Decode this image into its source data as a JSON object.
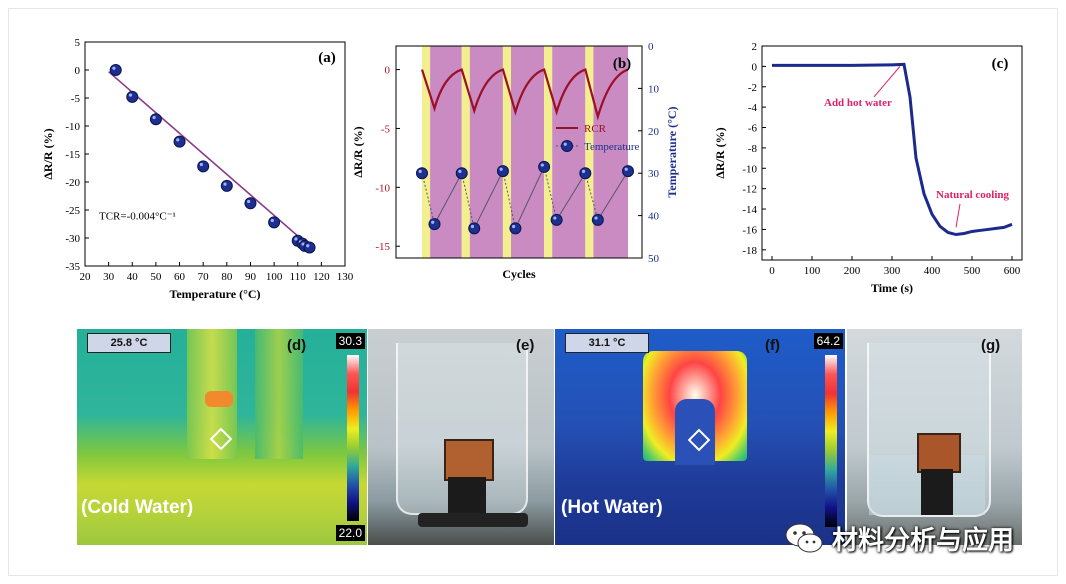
{
  "chart_data": [
    {
      "panel": "(a)",
      "type": "scatter",
      "xlabel": "Temperature (°C)",
      "ylabel": "ΔR/R (%)",
      "xlim": [
        20,
        130
      ],
      "ylim": [
        -35,
        5
      ],
      "xticks": [
        20,
        30,
        40,
        50,
        60,
        70,
        80,
        90,
        100,
        110,
        120,
        130
      ],
      "yticks": [
        5,
        0,
        -5,
        -10,
        -15,
        -20,
        -25,
        -30,
        -35
      ],
      "x": [
        33,
        40,
        50,
        60,
        70,
        80,
        90,
        100,
        110,
        112,
        113,
        115
      ],
      "y": [
        0,
        -4.8,
        -8.8,
        -12.8,
        -17.2,
        -20.7,
        -23.8,
        -27.2,
        -30.5,
        -31.0,
        -31.4,
        -31.7
      ],
      "fit_line": {
        "x": [
          30,
          117
        ],
        "y": [
          -0.3,
          -32.2
        ]
      },
      "annotation": "TCR=-0.004°C⁻¹"
    },
    {
      "panel": "(b)",
      "type": "line",
      "xlabel": "Cycles",
      "ylabel": "ΔR/R (%)",
      "ylabel_right": "Temperature (°C)",
      "ylim": [
        -16,
        2
      ],
      "yticks": [
        0,
        -5,
        -10,
        -15
      ],
      "ylim_right": [
        0,
        50
      ],
      "yticks_right": [
        0,
        10,
        20,
        30,
        40,
        50
      ],
      "legend": [
        "RCR",
        "Temperature"
      ],
      "series": [
        {
          "name": "RCR",
          "x": [
            0,
            0.85,
            2.7,
            3.55,
            5.5,
            6.35,
            8.3,
            9.15,
            11.1,
            11.95,
            14.0
          ],
          "values": [
            0,
            -3.3,
            0,
            -3.5,
            0,
            -3.6,
            0,
            -3.6,
            0,
            -4.0,
            0
          ]
        },
        {
          "name": "Temperature",
          "x": [
            0,
            0.85,
            2.7,
            3.55,
            5.5,
            6.35,
            8.3,
            9.15,
            11.1,
            11.95,
            14.0
          ],
          "values": [
            30,
            42,
            30,
            43,
            29.5,
            43,
            28.5,
            41,
            30,
            41,
            29.5
          ]
        }
      ],
      "bands": [
        "yellow",
        "purple",
        "yellow",
        "purple",
        "yellow",
        "purple",
        "yellow",
        "purple",
        "yellow",
        "purple"
      ]
    },
    {
      "panel": "(c)",
      "type": "line",
      "xlabel": "Time (s)",
      "ylabel": "ΔR/R (%)",
      "xlim": [
        -25,
        625
      ],
      "ylim": [
        -19,
        2
      ],
      "xticks": [
        0,
        100,
        200,
        300,
        400,
        500,
        600
      ],
      "yticks": [
        2,
        0,
        -2,
        -4,
        -6,
        -8,
        -10,
        -12,
        -14,
        -16,
        -18
      ],
      "x": [
        0,
        100,
        200,
        300,
        330,
        345,
        360,
        380,
        400,
        420,
        440,
        460,
        480,
        500,
        520,
        540,
        560,
        580,
        600
      ],
      "values": [
        0.1,
        0.1,
        0.1,
        0.15,
        0.2,
        -3,
        -9,
        -12.5,
        -14.5,
        -15.7,
        -16.3,
        -16.5,
        -16.4,
        -16.2,
        -16.1,
        -16.0,
        -15.9,
        -15.8,
        -15.5
      ],
      "annotations": [
        "Add hot water",
        "Natural cooling"
      ]
    }
  ],
  "photos": {
    "d": {
      "tag": "(d)",
      "reading": "25.8 °C",
      "scale_max": "30.3",
      "scale_min": "22.0",
      "label": "(Cold Water)"
    },
    "e": {
      "tag": "(e)"
    },
    "f": {
      "tag": "(f)",
      "reading": "31.1 °C",
      "scale_max": "64.2",
      "label": "(Hot Water)"
    },
    "g": {
      "tag": "(g)"
    }
  },
  "watermark": "材料分析与应用"
}
